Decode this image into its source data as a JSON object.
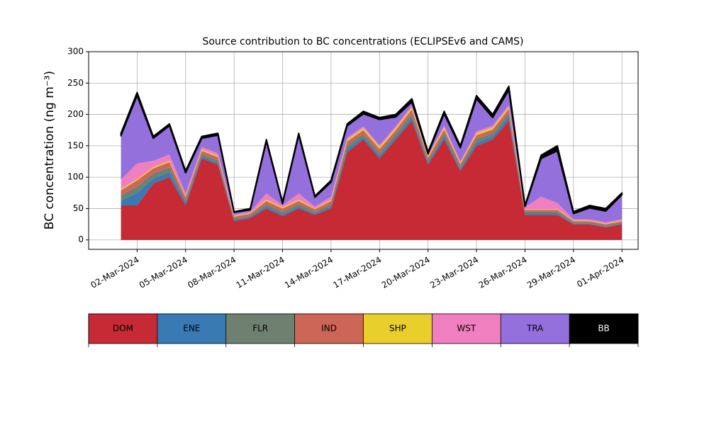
{
  "chart_data": {
    "type": "stacked_area",
    "title": "Source contribution to BC concentrations (ECLIPSEv6 and CAMS)",
    "y_label": "BC concentration (ng m⁻³)",
    "x": [
      "2024-03-01",
      "2024-03-02",
      "2024-03-03",
      "2024-03-04",
      "2024-03-05",
      "2024-03-06",
      "2024-03-07",
      "2024-03-08",
      "2024-03-09",
      "2024-03-10",
      "2024-03-11",
      "2024-03-12",
      "2024-03-13",
      "2024-03-14",
      "2024-03-15",
      "2024-03-16",
      "2024-03-17",
      "2024-03-18",
      "2024-03-19",
      "2024-03-20",
      "2024-03-21",
      "2024-03-22",
      "2024-03-23",
      "2024-03-24",
      "2024-03-25",
      "2024-03-26",
      "2024-03-27",
      "2024-03-28",
      "2024-03-29",
      "2024-03-30",
      "2024-03-31",
      "2024-04-01"
    ],
    "series": [
      {
        "name": "DOM",
        "color": "#c62a35",
        "values": [
          55,
          55,
          90,
          100,
          55,
          130,
          120,
          30,
          35,
          50,
          38,
          50,
          40,
          50,
          140,
          160,
          130,
          160,
          190,
          120,
          160,
          110,
          150,
          160,
          190,
          40,
          40,
          40,
          25,
          25,
          20,
          25
        ]
      },
      {
        "name": "ENE",
        "color": "#3a7ab3",
        "values": [
          8,
          20,
          8,
          8,
          4,
          3,
          3,
          2,
          2,
          3,
          3,
          3,
          2,
          3,
          5,
          4,
          4,
          4,
          5,
          3,
          5,
          3,
          5,
          5,
          6,
          2,
          2,
          2,
          1,
          1,
          1,
          1
        ]
      },
      {
        "name": "FLR",
        "color": "#6e8070",
        "values": [
          8,
          10,
          8,
          8,
          4,
          4,
          4,
          2,
          2,
          4,
          4,
          4,
          3,
          4,
          6,
          5,
          5,
          5,
          6,
          4,
          5,
          4,
          6,
          5,
          6,
          3,
          3,
          3,
          2,
          2,
          2,
          2
        ]
      },
      {
        "name": "IND",
        "color": "#cc6656",
        "values": [
          8,
          10,
          8,
          8,
          5,
          5,
          5,
          3,
          3,
          5,
          5,
          5,
          4,
          5,
          6,
          6,
          6,
          6,
          7,
          4,
          6,
          4,
          6,
          6,
          7,
          3,
          3,
          3,
          2,
          2,
          2,
          2
        ]
      },
      {
        "name": "SHP",
        "color": "#e8cf2c",
        "values": [
          2,
          2,
          2,
          2,
          1,
          2,
          2,
          1,
          1,
          2,
          2,
          2,
          1,
          2,
          3,
          3,
          3,
          3,
          3,
          2,
          3,
          2,
          3,
          3,
          3,
          1,
          1,
          1,
          1,
          1,
          1,
          1
        ]
      },
      {
        "name": "WST",
        "color": "#f07fbf",
        "values": [
          15,
          25,
          10,
          10,
          5,
          4,
          4,
          2,
          2,
          10,
          3,
          10,
          3,
          5,
          3,
          3,
          3,
          3,
          3,
          2,
          3,
          2,
          3,
          3,
          3,
          3,
          20,
          10,
          2,
          2,
          2,
          2
        ]
      },
      {
        "name": "TRA",
        "color": "#9370db",
        "values": [
          70,
          108,
          36,
          46,
          33,
          14,
          29,
          4,
          3,
          83,
          3,
          93,
          15,
          23,
          19,
          20,
          41,
          15,
          6,
          2,
          19,
          22,
          52,
          13,
          24,
          1,
          61,
          83,
          9,
          18,
          18,
          39
        ]
      },
      {
        "name": "BB",
        "color": "#000000",
        "values": [
          4,
          5,
          3,
          3,
          3,
          3,
          3,
          1,
          2,
          3,
          2,
          3,
          2,
          3,
          3,
          4,
          3,
          4,
          5,
          3,
          4,
          3,
          5,
          5,
          6,
          2,
          5,
          8,
          3,
          4,
          4,
          3
        ]
      }
    ],
    "xlim": [
      "2024-02-28",
      "2024-04-02"
    ],
    "xticks": [
      {
        "value": "2024-03-02",
        "label": "02-Mar-2024"
      },
      {
        "value": "2024-03-05",
        "label": "05-Mar-2024"
      },
      {
        "value": "2024-03-08",
        "label": "08-Mar-2024"
      },
      {
        "value": "2024-03-11",
        "label": "11-Mar-2024"
      },
      {
        "value": "2024-03-14",
        "label": "14-Mar-2024"
      },
      {
        "value": "2024-03-17",
        "label": "17-Mar-2024"
      },
      {
        "value": "2024-03-20",
        "label": "20-Mar-2024"
      },
      {
        "value": "2024-03-23",
        "label": "23-Mar-2024"
      },
      {
        "value": "2024-03-26",
        "label": "26-Mar-2024"
      },
      {
        "value": "2024-03-29",
        "label": "29-Mar-2024"
      },
      {
        "value": "2024-04-01",
        "label": "01-Apr-2024"
      }
    ],
    "ylim": [
      -15,
      300
    ],
    "yticks": [
      0,
      50,
      100,
      150,
      200,
      250,
      300
    ],
    "grid": true
  }
}
